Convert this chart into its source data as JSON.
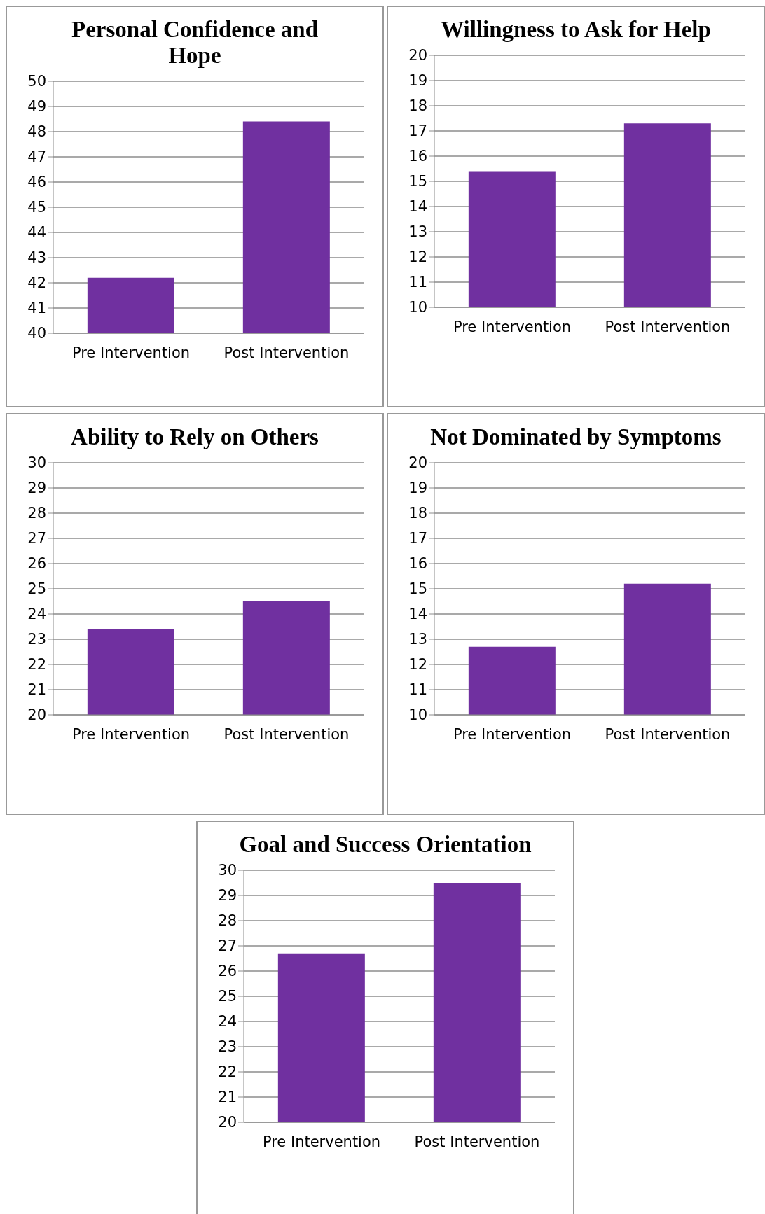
{
  "chart_data": [
    {
      "type": "bar",
      "title": "Personal Confidence and Hope",
      "categories": [
        "Pre Intervention",
        "Post Intervention"
      ],
      "values": [
        42.2,
        48.4
      ],
      "color": "#7030a0",
      "ylim": [
        40,
        50
      ],
      "yticks": [
        40,
        41,
        42,
        43,
        44,
        45,
        46,
        47,
        48,
        49,
        50
      ],
      "grid": "y",
      "legend": false
    },
    {
      "type": "bar",
      "title": "Willingness to Ask for Help",
      "categories": [
        "Pre Intervention",
        "Post Intervention"
      ],
      "values": [
        15.4,
        17.3
      ],
      "color": "#7030a0",
      "ylim": [
        10,
        20
      ],
      "yticks": [
        10,
        11,
        12,
        13,
        14,
        15,
        16,
        17,
        18,
        19,
        20
      ],
      "grid": "y",
      "legend": false
    },
    {
      "type": "bar",
      "title": "Ability to Rely on Others",
      "categories": [
        "Pre Intervention",
        "Post Intervention"
      ],
      "values": [
        23.4,
        24.5
      ],
      "color": "#7030a0",
      "ylim": [
        20,
        30
      ],
      "yticks": [
        20,
        21,
        22,
        23,
        24,
        25,
        26,
        27,
        28,
        29,
        30
      ],
      "grid": "y",
      "legend": false
    },
    {
      "type": "bar",
      "title": "Not Dominated by Symptoms",
      "categories": [
        "Pre Intervention",
        "Post Intervention"
      ],
      "values": [
        12.7,
        15.2
      ],
      "color": "#7030a0",
      "ylim": [
        10,
        20
      ],
      "yticks": [
        10,
        11,
        12,
        13,
        14,
        15,
        16,
        17,
        18,
        19,
        20
      ],
      "grid": "y",
      "legend": false
    },
    {
      "type": "bar",
      "title": "Goal and Success Orientation",
      "categories": [
        "Pre Intervention",
        "Post Intervention"
      ],
      "values": [
        26.7,
        29.5
      ],
      "color": "#7030a0",
      "ylim": [
        20,
        30
      ],
      "yticks": [
        20,
        21,
        22,
        23,
        24,
        25,
        26,
        27,
        28,
        29,
        30
      ],
      "grid": "y",
      "legend": false
    }
  ]
}
